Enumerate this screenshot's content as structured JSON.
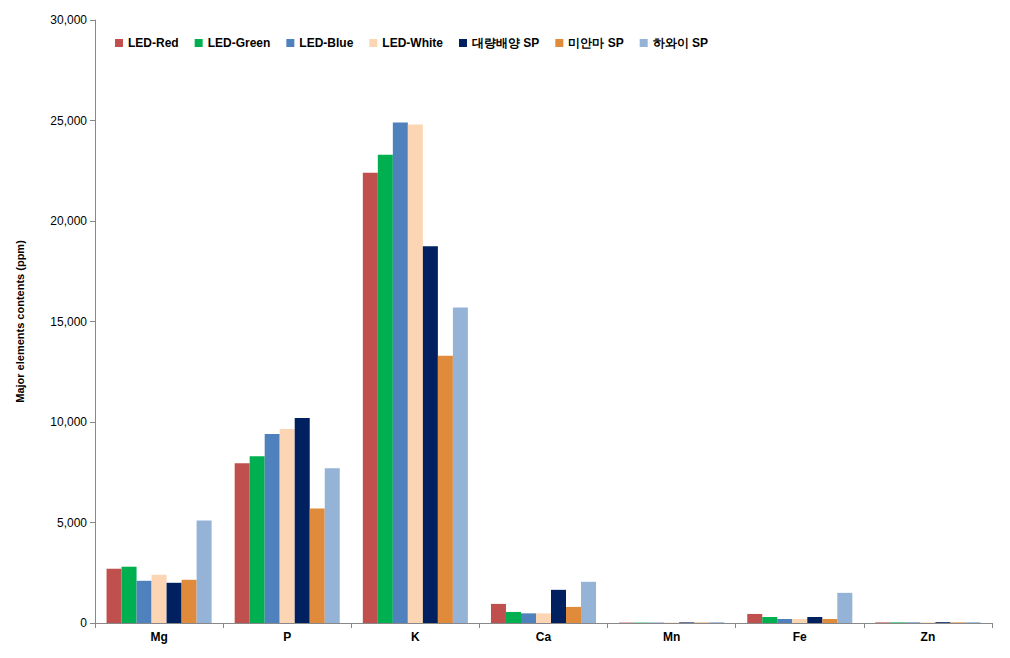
{
  "chart_data": {
    "type": "bar",
    "y_label": "Major elements contents (ppm)",
    "categories": [
      "Mg",
      "P",
      "K",
      "Ca",
      "Mn",
      "Fe",
      "Zn"
    ],
    "series": [
      {
        "name": "LED-Red",
        "color": "#c0504d",
        "values": [
          2700,
          7950,
          22400,
          950,
          20,
          450,
          30
        ]
      },
      {
        "name": "LED-Green",
        "color": "#00b050",
        "values": [
          2800,
          8300,
          23300,
          550,
          20,
          300,
          30
        ]
      },
      {
        "name": "LED-Blue",
        "color": "#4f81bd",
        "values": [
          2100,
          9400,
          24900,
          480,
          20,
          200,
          30
        ]
      },
      {
        "name": "LED-White",
        "color": "#fcd5b4",
        "values": [
          2400,
          9650,
          24800,
          480,
          20,
          200,
          30
        ]
      },
      {
        "name": "대량배양 SP",
        "color": "#002060",
        "values": [
          2000,
          10200,
          18750,
          1650,
          30,
          300,
          40
        ]
      },
      {
        "name": "미안마 SP",
        "color": "#e08a3c",
        "values": [
          2150,
          5700,
          13300,
          800,
          20,
          200,
          30
        ]
      },
      {
        "name": "하와이 SP",
        "color": "#95b3d7",
        "values": [
          5100,
          7700,
          15700,
          2050,
          40,
          1500,
          40
        ]
      }
    ],
    "ylim": [
      0,
      30000
    ],
    "yticks": [
      0,
      {
        "value": 5000,
        "label": "5,000"
      },
      {
        "value": 10000,
        "label": "10,000"
      },
      {
        "value": 15000,
        "label": "15,000"
      },
      {
        "value": 20000,
        "label": "20,000"
      },
      {
        "value": 25000,
        "label": "25,000"
      },
      {
        "value": 30000,
        "label": "30,000"
      }
    ],
    "grid": false,
    "legend": "upper left"
  }
}
